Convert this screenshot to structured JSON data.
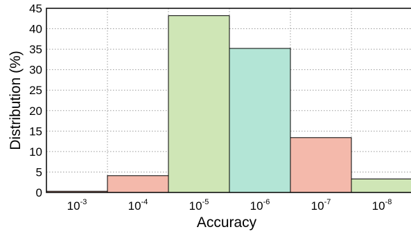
{
  "chart_data": {
    "type": "bar",
    "categories": [
      {
        "base": "10",
        "exp": "-3"
      },
      {
        "base": "10",
        "exp": "-4"
      },
      {
        "base": "10",
        "exp": "-5"
      },
      {
        "base": "10",
        "exp": "-6"
      },
      {
        "base": "10",
        "exp": "-7"
      },
      {
        "base": "10",
        "exp": "-8"
      }
    ],
    "values": [
      0.3,
      4.1,
      43.2,
      35.2,
      13.4,
      3.3
    ],
    "colors": [
      "#f4b9ab",
      "#f4b9ab",
      "#cfe6b6",
      "#b3e5d6",
      "#f4b9ab",
      "#cfe6b6"
    ],
    "xlabel": "Accuracy",
    "ylabel": "Distribution (%)",
    "ylim": [
      0,
      45
    ],
    "yticks": [
      "0",
      "5",
      "10",
      "15",
      "20",
      "25",
      "30",
      "35",
      "40",
      "45"
    ],
    "grid": true
  }
}
